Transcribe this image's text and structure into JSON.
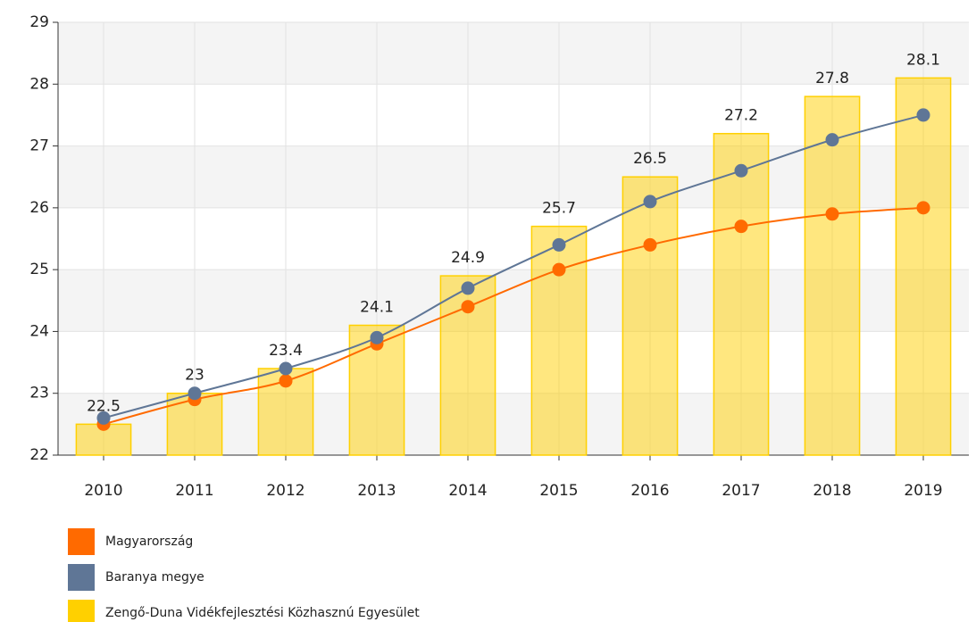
{
  "chart_data": {
    "type": "combo",
    "categories": [
      "2010",
      "2011",
      "2012",
      "2013",
      "2014",
      "2015",
      "2016",
      "2017",
      "2018",
      "2019"
    ],
    "ylim": [
      22,
      29
    ],
    "yticks": [
      22,
      23,
      24,
      25,
      26,
      27,
      28,
      29
    ],
    "grid": true,
    "series": [
      {
        "name": "Magyarország",
        "type": "line",
        "color": "#ff6a00",
        "values": [
          22.5,
          22.9,
          23.2,
          23.8,
          24.4,
          25.0,
          25.4,
          25.7,
          25.9,
          26.0
        ]
      },
      {
        "name": "Baranya megye",
        "type": "line",
        "color": "#5f7696",
        "values": [
          22.6,
          23.0,
          23.4,
          23.9,
          24.7,
          25.4,
          26.1,
          26.6,
          27.1,
          27.5
        ]
      },
      {
        "name": "Zengő-Duna Vidékfejlesztési Közhasznú Egyesület",
        "type": "bar",
        "color": "#ffd000",
        "values": [
          22.5,
          23,
          23.4,
          24.1,
          24.9,
          25.7,
          26.5,
          27.2,
          27.8,
          28.1
        ]
      }
    ]
  }
}
